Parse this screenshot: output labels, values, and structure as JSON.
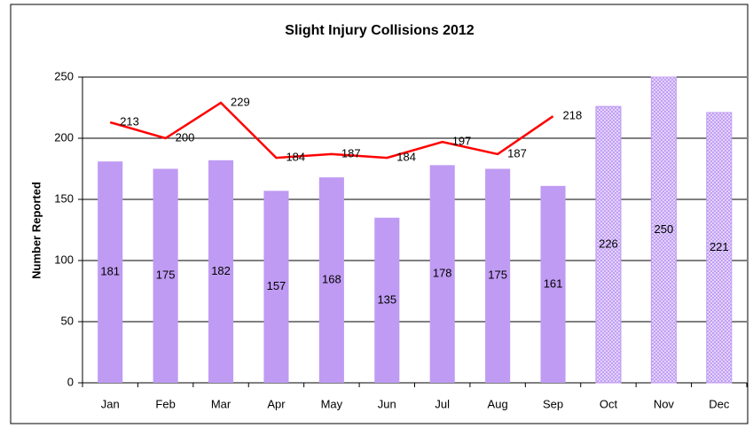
{
  "chart_data": {
    "type": "bar",
    "title": "Slight Injury Collisions 2012",
    "y_label": "Number Reported",
    "categories": [
      "Jan",
      "Feb",
      "Mar",
      "Apr",
      "May",
      "Jun",
      "Jul",
      "Aug",
      "Sep",
      "Oct",
      "Nov",
      "Dec"
    ],
    "series": [
      {
        "type": "bar",
        "color": "#bf9bf3",
        "pattern": false,
        "values": [
          181,
          175,
          182,
          157,
          168,
          135,
          178,
          175,
          161,
          null,
          null,
          null
        ]
      },
      {
        "type": "bar",
        "color": "#bf9bf3",
        "pattern": true,
        "values": [
          null,
          null,
          null,
          null,
          null,
          null,
          null,
          null,
          null,
          226,
          250,
          221
        ]
      },
      {
        "type": "line",
        "color": "#ff0000",
        "values": [
          213,
          200,
          229,
          184,
          187,
          184,
          197,
          187,
          218,
          null,
          null,
          null
        ]
      }
    ],
    "ylim": [
      0,
      250
    ],
    "yticks": [
      0,
      50,
      100,
      150,
      200,
      250
    ],
    "grid": true
  }
}
